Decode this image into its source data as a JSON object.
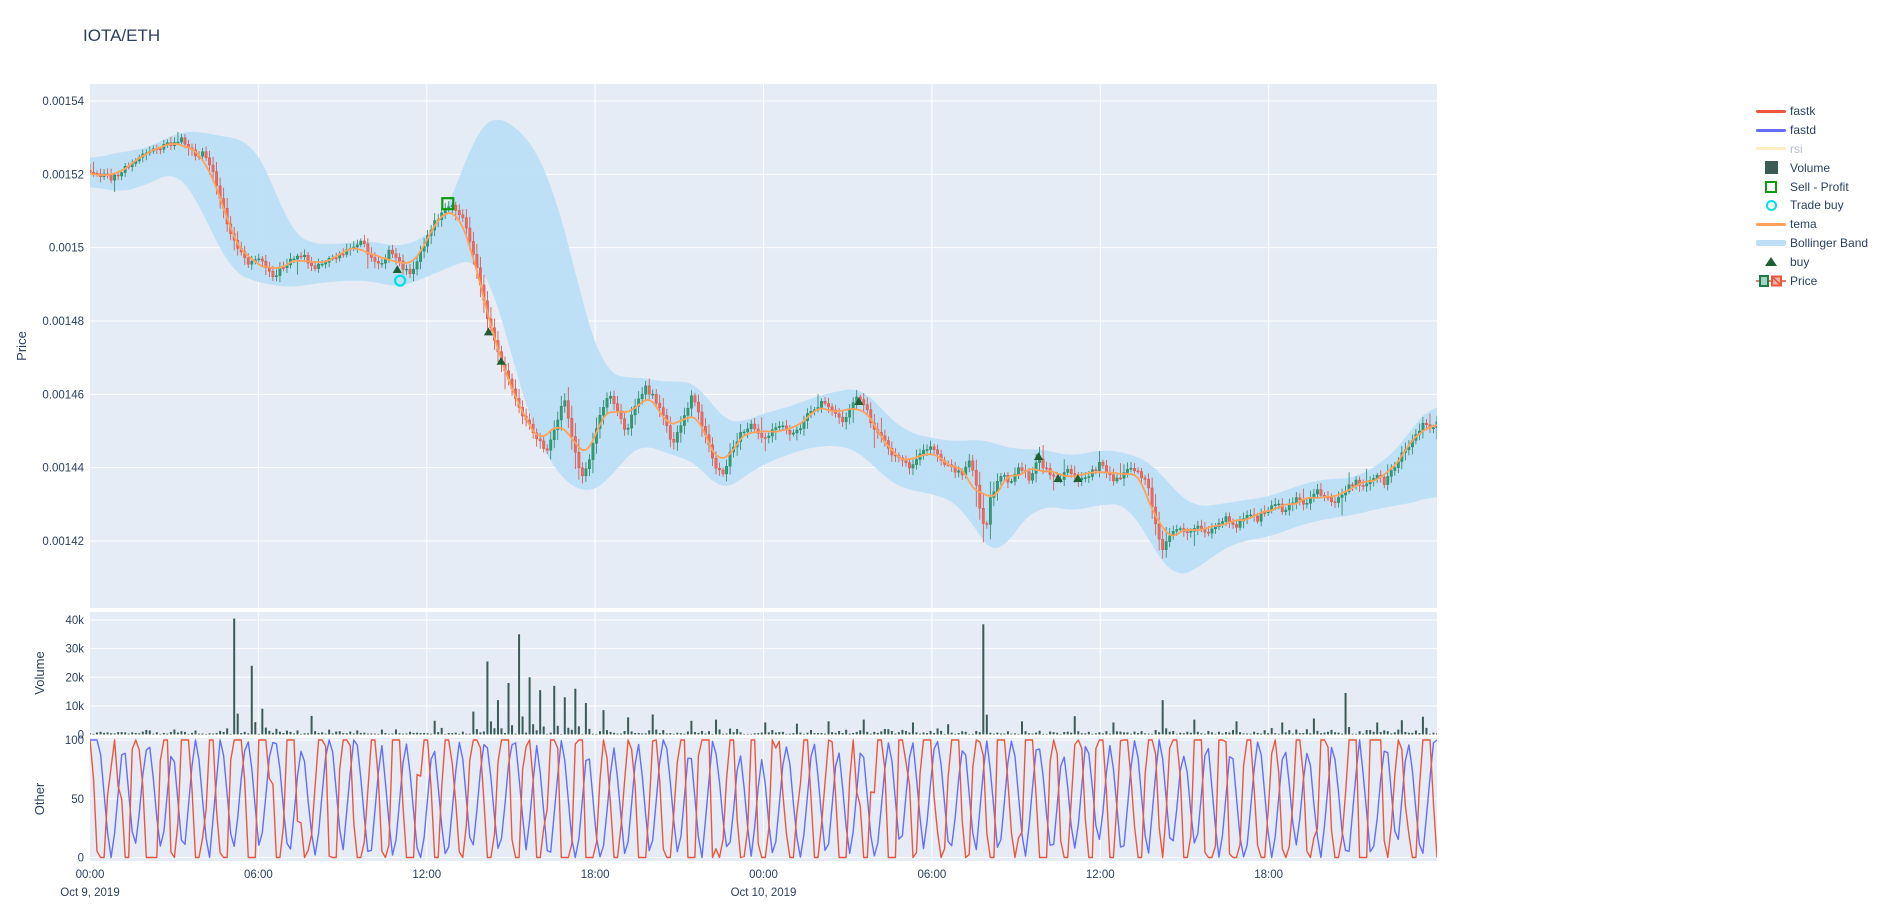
{
  "title": "IOTA/ETH",
  "legend": {
    "items": [
      {
        "label": "fastk",
        "swatch": "line",
        "color": "#EF553B",
        "faded": false
      },
      {
        "label": "fastd",
        "swatch": "line",
        "color": "#636EFA",
        "faded": false
      },
      {
        "label": "rsi",
        "swatch": "line",
        "color": "#FECB52",
        "faded": true
      },
      {
        "label": "Volume",
        "swatch": "square",
        "color": "#3A5C54",
        "faded": false
      },
      {
        "label": "Sell - Profit",
        "swatch": "square-open",
        "color": "#0E9B0E",
        "faded": false
      },
      {
        "label": "Trade buy",
        "swatch": "circle-open",
        "color": "#00E0E6",
        "faded": false
      },
      {
        "label": "tema",
        "swatch": "line",
        "color": "#FFA15A",
        "faded": false
      },
      {
        "label": "Bollinger Band",
        "swatch": "band",
        "color": "#BCDFF5",
        "faded": false
      },
      {
        "label": "buy",
        "swatch": "triangle",
        "color": "#1E5F33",
        "faded": false
      },
      {
        "label": "Price",
        "swatch": "candle",
        "color": "#2F9C72",
        "faded": false
      }
    ]
  },
  "axes": {
    "x": {
      "ticks": [
        {
          "t": 0,
          "label": "00:00",
          "date": "Oct 9, 2019"
        },
        {
          "t": 6,
          "label": "06:00"
        },
        {
          "t": 12,
          "label": "12:00"
        },
        {
          "t": 18,
          "label": "18:00"
        },
        {
          "t": 24,
          "label": "00:00",
          "date": "Oct 10, 2019"
        },
        {
          "t": 30,
          "label": "06:00"
        },
        {
          "t": 36,
          "label": "12:00"
        },
        {
          "t": 42,
          "label": "18:00"
        }
      ],
      "range_hours": 48
    },
    "price": {
      "title": "Price",
      "ticks": [
        {
          "v": 1540,
          "label": "0.00154"
        },
        {
          "v": 1520,
          "label": "0.00152"
        },
        {
          "v": 1500,
          "label": "0.0015"
        },
        {
          "v": 1480,
          "label": "0.00148"
        },
        {
          "v": 1460,
          "label": "0.00146"
        },
        {
          "v": 1440,
          "label": "0.00144"
        },
        {
          "v": 1420,
          "label": "0.00142"
        }
      ],
      "range": [
        0.0014017,
        0.0015446
      ]
    },
    "volume": {
      "title": "Volume",
      "ticks": [
        {
          "v": 40000,
          "label": "40k"
        },
        {
          "v": 30000,
          "label": "30k"
        },
        {
          "v": 20000,
          "label": "20k"
        },
        {
          "v": 10000,
          "label": "10k"
        },
        {
          "v": 0,
          "label": "0"
        }
      ],
      "range": [
        0,
        42800
      ]
    },
    "other": {
      "title": "Other",
      "ticks": [
        {
          "v": 100,
          "label": "100"
        },
        {
          "v": 50,
          "label": "50"
        },
        {
          "v": 0,
          "label": "0"
        }
      ],
      "range": [
        0,
        100
      ]
    }
  },
  "chart_data": {
    "type": "candlestick-multi-panel",
    "title": "IOTA/ETH",
    "time_start": "Oct 9, 2019 00:00",
    "time_span_hours": 48,
    "price_scale": 1e-06,
    "price_unit_note": "price values below are in units of 0.000001 ETH (e.g. 1521 = 0.001521)",
    "series": [
      "Price candles",
      "tema",
      "Bollinger Band",
      "Volume",
      "fastk",
      "fastd",
      "rsi (hidden)"
    ],
    "price_path": [
      [
        0,
        1521
      ],
      [
        0.8,
        1519
      ],
      [
        1.3,
        1522
      ],
      [
        2,
        1526
      ],
      [
        2.7,
        1528
      ],
      [
        3.3,
        1530
      ],
      [
        3.8,
        1524
      ],
      [
        4.1,
        1526
      ],
      [
        4.5,
        1518
      ],
      [
        4.8,
        1509
      ],
      [
        5.2,
        1500
      ],
      [
        5.6,
        1496
      ],
      [
        6.1,
        1497
      ],
      [
        6.5,
        1492
      ],
      [
        7,
        1496
      ],
      [
        7.5,
        1498
      ],
      [
        8,
        1495
      ],
      [
        8.6,
        1497
      ],
      [
        9.1,
        1499
      ],
      [
        9.6,
        1502
      ],
      [
        10,
        1498
      ],
      [
        10.3,
        1495
      ],
      [
        10.7,
        1499
      ],
      [
        11,
        1496
      ],
      [
        11.4,
        1493
      ],
      [
        11.7,
        1497
      ],
      [
        12,
        1502
      ],
      [
        12.3,
        1507
      ],
      [
        12.6,
        1510
      ],
      [
        12.8,
        1512
      ],
      [
        13.1,
        1510
      ],
      [
        13.3,
        1508
      ],
      [
        13.6,
        1500
      ],
      [
        13.9,
        1490
      ],
      [
        14.2,
        1480
      ],
      [
        14.5,
        1472
      ],
      [
        14.7,
        1468
      ],
      [
        15,
        1463
      ],
      [
        15.4,
        1455
      ],
      [
        15.6,
        1452
      ],
      [
        16,
        1447
      ],
      [
        16.3,
        1444
      ],
      [
        16.6,
        1452
      ],
      [
        16.9,
        1459
      ],
      [
        17.2,
        1448
      ],
      [
        17.5,
        1437
      ],
      [
        17.8,
        1442
      ],
      [
        18.1,
        1453
      ],
      [
        18.5,
        1460
      ],
      [
        18.8,
        1455
      ],
      [
        19.1,
        1450
      ],
      [
        19.5,
        1458
      ],
      [
        19.8,
        1462
      ],
      [
        20.2,
        1458
      ],
      [
        20.5,
        1452
      ],
      [
        20.8,
        1446
      ],
      [
        21.1,
        1453
      ],
      [
        21.5,
        1460
      ],
      [
        21.8,
        1452
      ],
      [
        22.2,
        1442
      ],
      [
        22.5,
        1438
      ],
      [
        22.9,
        1445
      ],
      [
        23.2,
        1450
      ],
      [
        23.6,
        1452
      ],
      [
        24,
        1448
      ],
      [
        24.3,
        1450
      ],
      [
        24.7,
        1452
      ],
      [
        25,
        1448
      ],
      [
        25.4,
        1452
      ],
      [
        25.7,
        1456
      ],
      [
        26.1,
        1458
      ],
      [
        26.4,
        1456
      ],
      [
        26.8,
        1452
      ],
      [
        27.1,
        1456
      ],
      [
        27.4,
        1460
      ],
      [
        27.7,
        1455
      ],
      [
        28,
        1450
      ],
      [
        28.4,
        1446
      ],
      [
        28.8,
        1442
      ],
      [
        29.2,
        1440
      ],
      [
        29.6,
        1444
      ],
      [
        30,
        1446
      ],
      [
        30.3,
        1442
      ],
      [
        30.7,
        1440
      ],
      [
        31,
        1438
      ],
      [
        31.4,
        1442
      ],
      [
        31.7,
        1430
      ],
      [
        31.9,
        1421
      ],
      [
        32.1,
        1432
      ],
      [
        32.4,
        1438
      ],
      [
        32.8,
        1436
      ],
      [
        33.1,
        1440
      ],
      [
        33.5,
        1437
      ],
      [
        33.8,
        1442
      ],
      [
        34.2,
        1438
      ],
      [
        34.5,
        1436
      ],
      [
        34.9,
        1440
      ],
      [
        35.2,
        1436
      ],
      [
        35.6,
        1438
      ],
      [
        36,
        1441
      ],
      [
        36.3,
        1438
      ],
      [
        36.7,
        1436
      ],
      [
        37,
        1440
      ],
      [
        37.4,
        1438
      ],
      [
        37.7,
        1436
      ],
      [
        37.9,
        1428
      ],
      [
        38.2,
        1417
      ],
      [
        38.4,
        1420
      ],
      [
        38.8,
        1424
      ],
      [
        39.1,
        1422
      ],
      [
        39.5,
        1425
      ],
      [
        39.8,
        1422
      ],
      [
        40.2,
        1424
      ],
      [
        40.5,
        1426
      ],
      [
        40.9,
        1424
      ],
      [
        41.2,
        1428
      ],
      [
        41.6,
        1426
      ],
      [
        41.9,
        1428
      ],
      [
        42.3,
        1430
      ],
      [
        42.6,
        1428
      ],
      [
        43,
        1432
      ],
      [
        43.3,
        1430
      ],
      [
        43.7,
        1434
      ],
      [
        44,
        1432
      ],
      [
        44.4,
        1430
      ],
      [
        44.7,
        1434
      ],
      [
        45.1,
        1436
      ],
      [
        45.4,
        1434
      ],
      [
        45.8,
        1438
      ],
      [
        46.1,
        1436
      ],
      [
        46.5,
        1440
      ],
      [
        46.8,
        1444
      ],
      [
        47.2,
        1448
      ],
      [
        47.5,
        1452
      ],
      [
        47.8,
        1450
      ],
      [
        48,
        1452
      ]
    ],
    "bollinger": [
      [
        0,
        1524,
        1517
      ],
      [
        1,
        1526,
        1515
      ],
      [
        2,
        1527,
        1517
      ],
      [
        3,
        1531,
        1521
      ],
      [
        3.6,
        1532,
        1516
      ],
      [
        4.3,
        1531,
        1505
      ],
      [
        5,
        1530,
        1494
      ],
      [
        5.7,
        1529,
        1491
      ],
      [
        6.4,
        1520,
        1490
      ],
      [
        7.1,
        1505,
        1489
      ],
      [
        7.8,
        1501,
        1490
      ],
      [
        9,
        1501,
        1491
      ],
      [
        10,
        1502,
        1491
      ],
      [
        11,
        1500,
        1489
      ],
      [
        12,
        1503,
        1492
      ],
      [
        12.6,
        1508,
        1494
      ],
      [
        13.2,
        1520,
        1496
      ],
      [
        13.8,
        1532,
        1497
      ],
      [
        14.3,
        1536,
        1490
      ],
      [
        14.8,
        1535,
        1478
      ],
      [
        15.3,
        1532,
        1462
      ],
      [
        15.9,
        1527,
        1449
      ],
      [
        16.5,
        1516,
        1440
      ],
      [
        17.1,
        1500,
        1435
      ],
      [
        17.7,
        1480,
        1433
      ],
      [
        18.3,
        1467,
        1435
      ],
      [
        19,
        1464,
        1442
      ],
      [
        19.7,
        1465,
        1447
      ],
      [
        20.4,
        1463,
        1444
      ],
      [
        21.1,
        1464,
        1443
      ],
      [
        21.8,
        1462,
        1440
      ],
      [
        22.5,
        1453,
        1433
      ],
      [
        23.2,
        1452,
        1437
      ],
      [
        24,
        1455,
        1441
      ],
      [
        24.7,
        1456,
        1443
      ],
      [
        25.4,
        1458,
        1445
      ],
      [
        26.1,
        1460,
        1446
      ],
      [
        26.8,
        1461,
        1446
      ],
      [
        27.5,
        1462,
        1444
      ],
      [
        28.2,
        1456,
        1438
      ],
      [
        29,
        1450,
        1434
      ],
      [
        30,
        1448,
        1433
      ],
      [
        31,
        1447,
        1430
      ],
      [
        31.8,
        1448,
        1420
      ],
      [
        32.4,
        1446,
        1415
      ],
      [
        33,
        1445,
        1424
      ],
      [
        34,
        1445,
        1430
      ],
      [
        35,
        1443,
        1428
      ],
      [
        36,
        1445,
        1430
      ],
      [
        37,
        1444,
        1430
      ],
      [
        37.9,
        1441,
        1418
      ],
      [
        38.6,
        1434,
        1410
      ],
      [
        39.4,
        1429,
        1412
      ],
      [
        40.2,
        1430,
        1417
      ],
      [
        41,
        1431,
        1420
      ],
      [
        42,
        1432,
        1421
      ],
      [
        43,
        1435,
        1424
      ],
      [
        44,
        1437,
        1426
      ],
      [
        45,
        1437,
        1427
      ],
      [
        46,
        1441,
        1429
      ],
      [
        46.8,
        1447,
        1430
      ],
      [
        47.5,
        1455,
        1431
      ],
      [
        48,
        1458,
        1433
      ]
    ],
    "markers": {
      "buy": [
        [
          10.95,
          1494
        ],
        [
          14.2,
          1477
        ],
        [
          14.65,
          1469
        ],
        [
          27.4,
          1458
        ],
        [
          33.8,
          1443
        ],
        [
          34.5,
          1437
        ],
        [
          35.2,
          1437
        ]
      ],
      "trade_buy": [
        [
          11.05,
          1491
        ]
      ],
      "sell_profit": [
        [
          12.75,
          1512
        ]
      ]
    },
    "volume_spikes": [
      [
        5.2,
        40500
      ],
      [
        5.75,
        24000
      ],
      [
        6.2,
        9000
      ],
      [
        7.9,
        6500
      ],
      [
        12.3,
        4800
      ],
      [
        13.6,
        8000
      ],
      [
        14.2,
        25500
      ],
      [
        14.55,
        12000
      ],
      [
        14.9,
        18000
      ],
      [
        15.3,
        35000
      ],
      [
        15.7,
        20000
      ],
      [
        16.1,
        15500
      ],
      [
        16.5,
        17000
      ],
      [
        16.9,
        13000
      ],
      [
        17.3,
        16000
      ],
      [
        17.7,
        11000
      ],
      [
        18.3,
        8500
      ],
      [
        19.2,
        6000
      ],
      [
        20.1,
        7000
      ],
      [
        21.4,
        4800
      ],
      [
        22.3,
        5200
      ],
      [
        24.1,
        4200
      ],
      [
        25.2,
        3800
      ],
      [
        26.3,
        4600
      ],
      [
        27.6,
        5200
      ],
      [
        29.3,
        4200
      ],
      [
        30.6,
        3600
      ],
      [
        31.85,
        38500
      ],
      [
        33.2,
        4600
      ],
      [
        35.1,
        6400
      ],
      [
        36.5,
        4200
      ],
      [
        38.2,
        12000
      ],
      [
        39.3,
        5200
      ],
      [
        40.8,
        4600
      ],
      [
        42.5,
        4200
      ],
      [
        43.6,
        5600
      ],
      [
        44.8,
        14500
      ],
      [
        45.9,
        4200
      ],
      [
        46.8,
        5000
      ],
      [
        47.5,
        6200
      ]
    ],
    "oscillator": {
      "names": [
        "fastk",
        "fastd"
      ],
      "range": [
        0,
        100
      ],
      "behavior": "rapid rail-to-rail stochastic oscillation"
    },
    "candle_count": 384,
    "render_seed": 11
  },
  "colors": {
    "text": "#2a3f5f",
    "faded_text": "#b4bdcc",
    "panel_bg": "#E5ECF6",
    "grid": "#ffffff",
    "candle_up_fill": "#2F9C72",
    "candle_up_stroke": "#26855F",
    "candle_down_fill": "#ED6A5F",
    "candle_down_stroke": "#DC4C3F",
    "tema": "#FFA15A",
    "bollinger": "#BCDFF5",
    "volume_bar": "#3A5C54",
    "fastk": "#EF553B",
    "fastd": "#636EFA",
    "rsi": "#FECB52",
    "buy_marker": "#1E5F33",
    "trade_buy_marker": "#00E0E6",
    "sell_profit_marker": "#0E9B0E"
  }
}
